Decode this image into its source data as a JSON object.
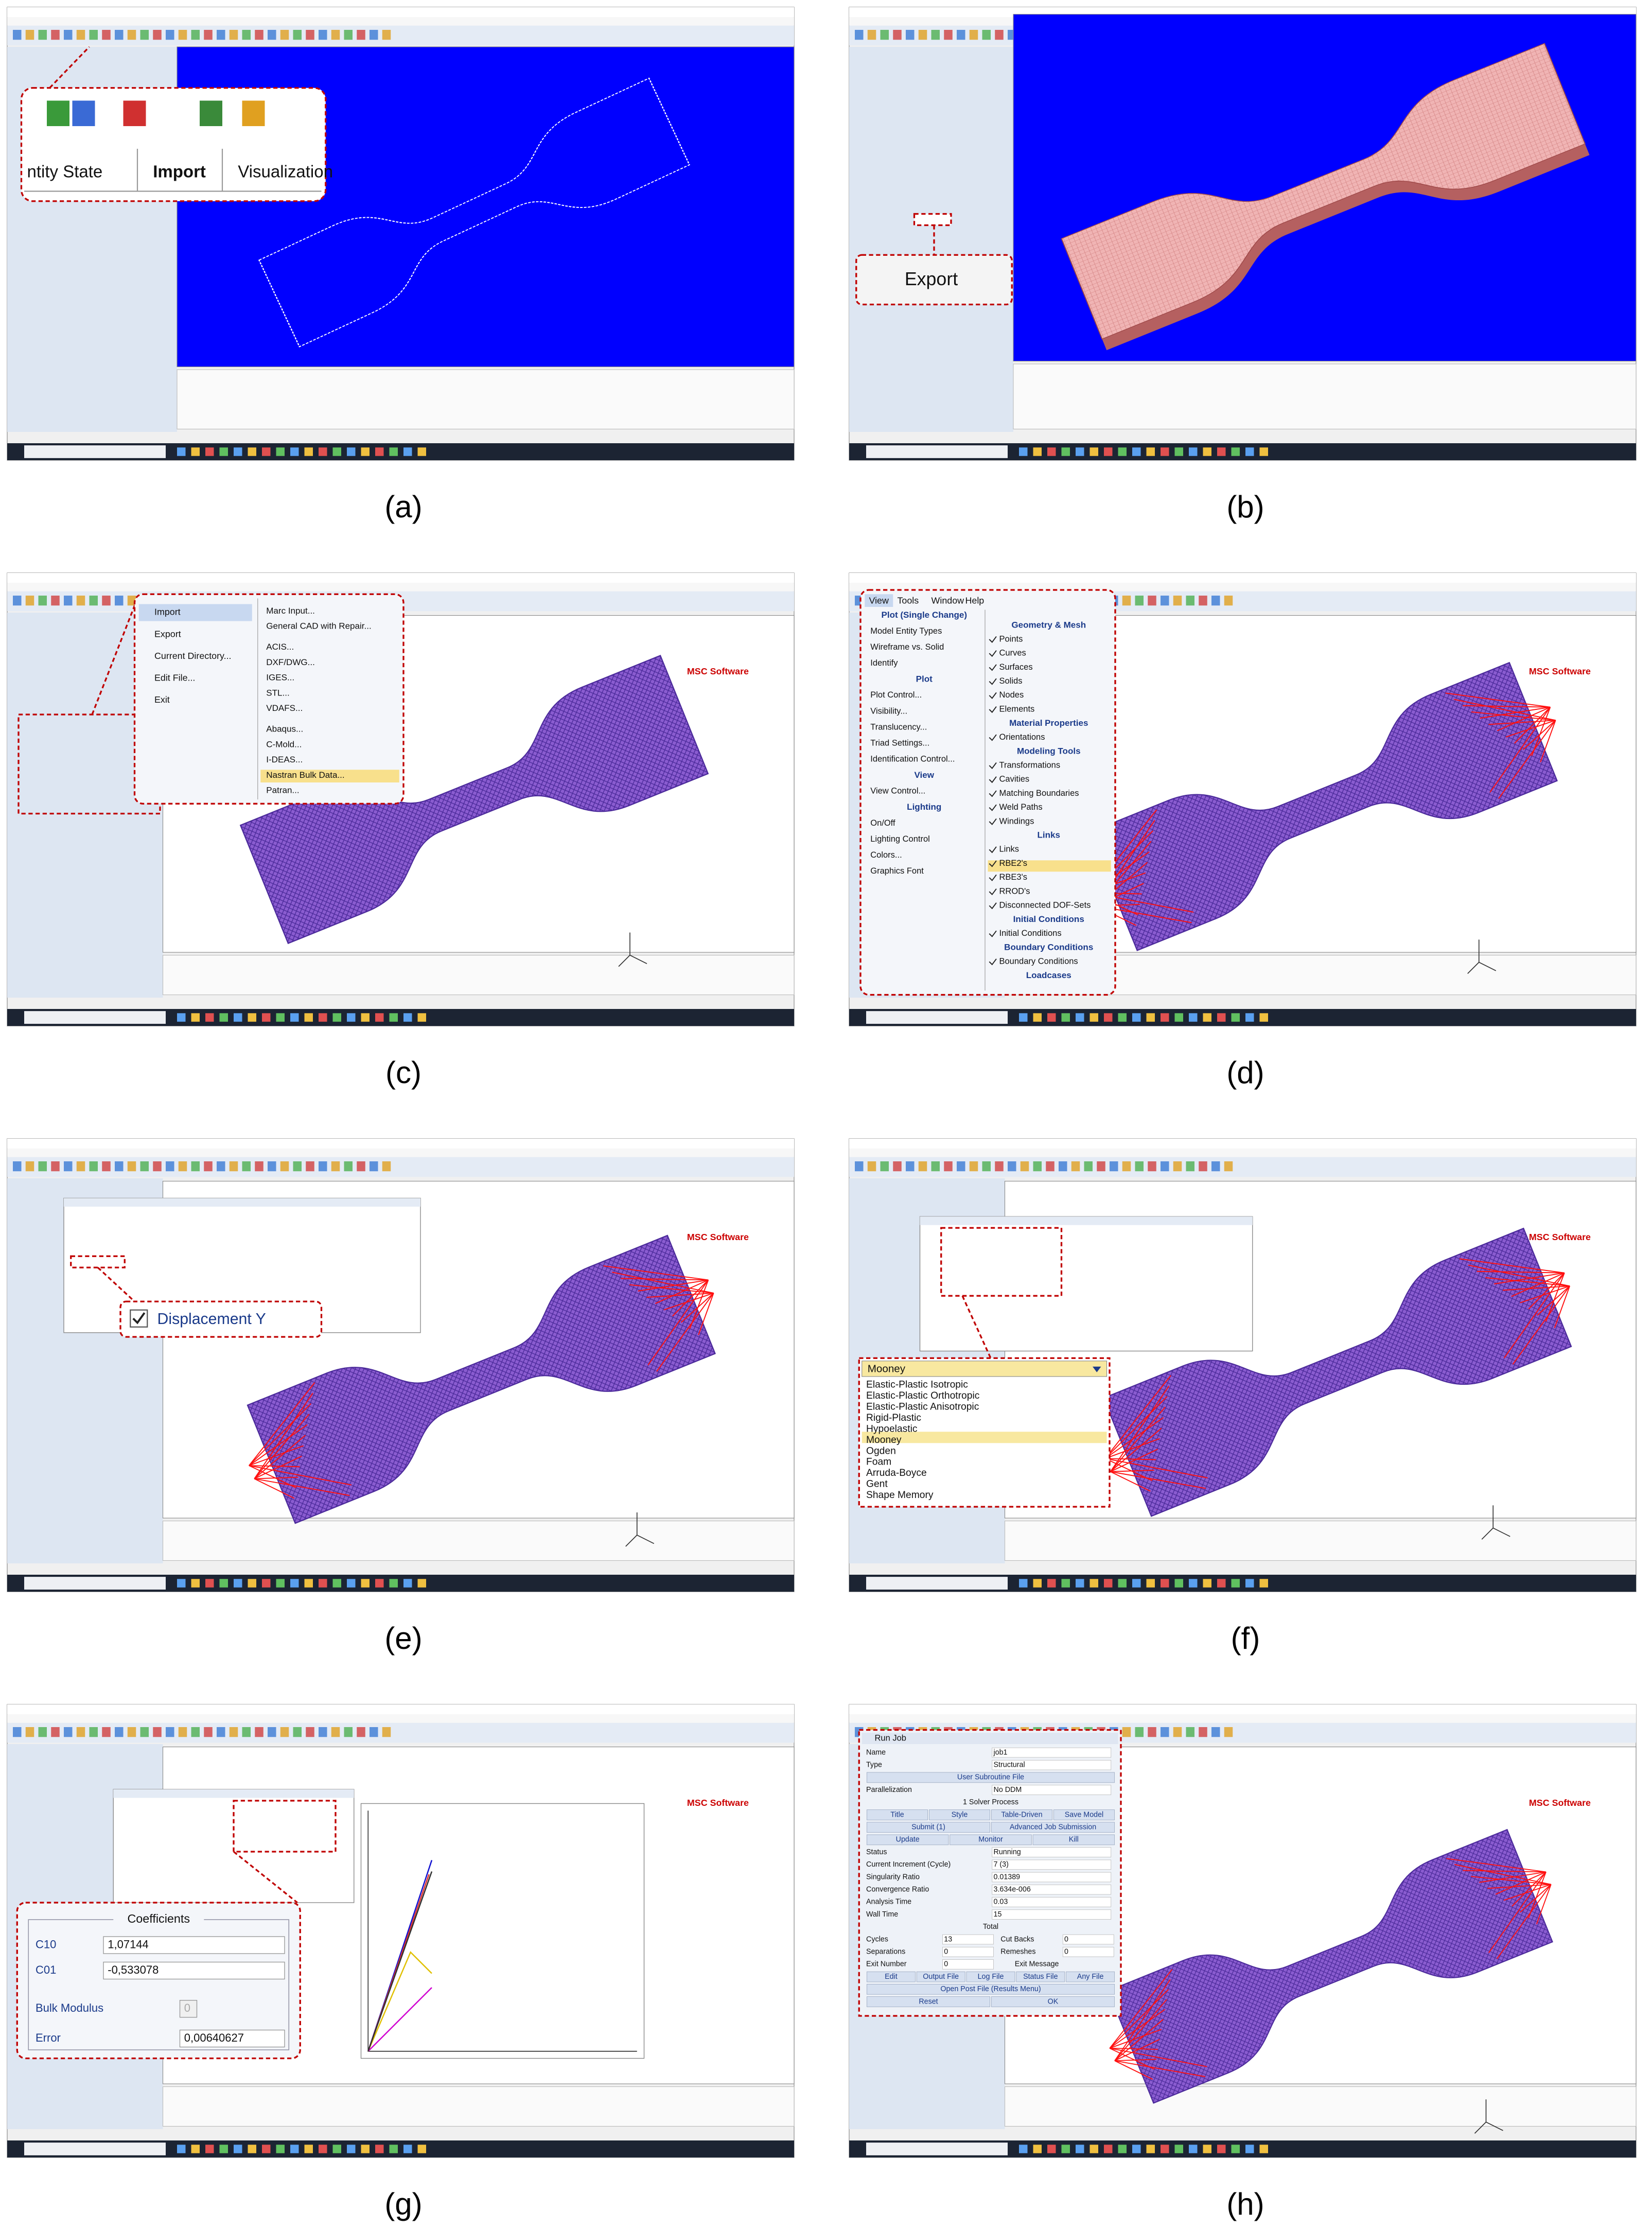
{
  "panels": [
    {
      "caption": "(a)",
      "callout": [
        "ntity State",
        "Import",
        "Visualization"
      ]
    },
    {
      "caption": "(b)",
      "callout": [
        "Export"
      ]
    },
    {
      "caption": "(c)",
      "logo": "MSC Software",
      "menu": [
        "Import",
        "Export",
        "Current Directory...",
        "Edit File...",
        "Exit"
      ],
      "submenu": [
        "Marc Input...",
        "General CAD with Repair...",
        "ACIS...",
        "DXF/DWG...",
        "IGES...",
        "STL...",
        "VDAFS...",
        "Abaqus...",
        "C-Mold...",
        "I-DEAS...",
        "Nastran Bulk Data...",
        "Patran..."
      ]
    },
    {
      "caption": "(d)",
      "logo": "MSC Software",
      "menubar": [
        "View",
        "Tools",
        "Window",
        "Help"
      ],
      "left": [
        {
          "text": "Plot (Single Change)",
          "heading": true
        },
        "Model Entity Types",
        "Wireframe vs. Solid",
        "Identify",
        {
          "text": "Plot",
          "heading": true
        },
        "Plot Control...",
        "Visibility...",
        "Translucency...",
        "Triad Settings...",
        "Identification Control...",
        {
          "text": "View",
          "heading": true
        },
        "View Control...",
        {
          "text": "Lighting",
          "heading": true
        },
        "On/Off",
        "Lighting Control",
        "Colors...",
        "Graphics Font"
      ],
      "right": [
        {
          "text": "Geometry & Mesh",
          "heading": true
        },
        "Points",
        "Curves",
        "Surfaces",
        "Solids",
        "Nodes",
        "Elements",
        {
          "text": "Material Properties",
          "heading": true
        },
        "Orientations",
        {
          "text": "Modeling Tools",
          "heading": true
        },
        "Transformations",
        "Cavities",
        "Matching Boundaries",
        "Weld Paths",
        "Windings",
        {
          "text": "Links",
          "heading": true
        },
        "Links",
        "RBE2's",
        "RBE3's",
        "RROD's",
        "Disconnected DOF-Sets",
        {
          "text": "Initial Conditions",
          "heading": true
        },
        "Initial Conditions",
        {
          "text": "Boundary Conditions",
          "heading": true
        },
        "Boundary Conditions",
        {
          "text": "Loadcases",
          "heading": true
        }
      ]
    },
    {
      "caption": "(e)",
      "logo": "MSC Software",
      "callout": [
        "Displacement Y"
      ]
    },
    {
      "caption": "(f)",
      "logo": "MSC Software",
      "dropdown": "Mooney",
      "options": [
        "Elastic-Plastic Isotropic",
        "Elastic-Plastic Orthotropic",
        "Elastic-Plastic Anisotropic",
        "Rigid-Plastic",
        "Hypoelastic",
        "Mooney",
        "Ogden",
        "Foam",
        "Arruda-Boyce",
        "Gent",
        "Shape Memory"
      ]
    },
    {
      "caption": "(g)",
      "logo": "MSC Software",
      "title": "Coefficients",
      "rows": [
        [
          "C10",
          "1,07144"
        ],
        [
          "C01",
          "-0,533078"
        ],
        [
          "Bulk Modulus",
          "0"
        ],
        [
          "Error",
          "0,00640627"
        ]
      ]
    },
    {
      "caption": "(h)",
      "logo": "MSC Software",
      "title": "Run Job",
      "rows": [
        {
          "cells": [
            "Name",
            "job1"
          ]
        },
        {
          "cells": [
            "Type",
            "Structural"
          ]
        },
        {
          "cells": [
            "User Subroutine File"
          ],
          "button": true
        },
        {
          "cells": [
            "Parallelization",
            "No DDM"
          ]
        },
        {
          "cells": [
            "1 Solver Process"
          ]
        },
        {
          "cells": [
            "Title",
            "Style",
            "Table-Driven",
            "Save Model"
          ],
          "button": true
        },
        {
          "cells": [
            "Submit (1)",
            "Advanced Job Submission"
          ],
          "button": true
        },
        {
          "cells": [
            "Update",
            "Monitor",
            "Kill"
          ],
          "button": true
        },
        {
          "cells": [
            "Status",
            "Running"
          ]
        },
        {
          "cells": [
            "Current Increment (Cycle)",
            "7 (3)"
          ]
        },
        {
          "cells": [
            "Singularity Ratio",
            "0.01389"
          ]
        },
        {
          "cells": [
            "Convergence Ratio",
            "3.634e-006"
          ]
        },
        {
          "cells": [
            "Analysis Time",
            "0.03"
          ]
        },
        {
          "cells": [
            "Wall Time",
            "15"
          ]
        },
        {
          "cells": [
            "Total"
          ]
        },
        {
          "cells": [
            "Cycles",
            "13",
            "Cut Backs",
            "0"
          ]
        },
        {
          "cells": [
            "Separations",
            "0",
            "Remeshes",
            "0"
          ]
        },
        {
          "cells": [
            "Exit Number",
            "0",
            "Exit Message"
          ]
        },
        {
          "cells": [
            "Edit",
            "Output File",
            "Log File",
            "Status File",
            "Any File"
          ],
          "button": true
        },
        {
          "cells": [
            "Open Post File (Results Menu)"
          ],
          "button": true
        },
        {
          "cells": [
            "Reset",
            "OK"
          ],
          "button": true
        }
      ]
    }
  ]
}
